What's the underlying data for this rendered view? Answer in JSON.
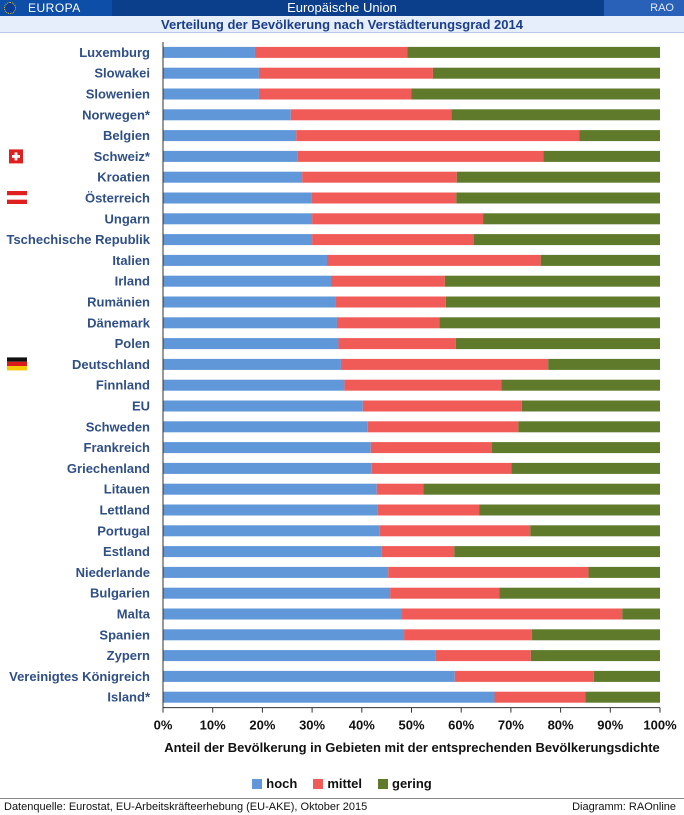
{
  "header": {
    "brand_left": "EUROPA",
    "title": "Europäische Union",
    "brand_right": "RAO",
    "subtitle": "Verteilung der Bevölkerung nach Verstädterungsgrad 2014"
  },
  "footer": {
    "source": "Datenquelle: Eurostat, EU-Arbeitskräfteerhebung (EU-AKE), Oktober 2015",
    "credit": "Diagramm: RAOnline"
  },
  "chart_data": {
    "type": "bar",
    "orientation": "horizontal",
    "stacked": "100%",
    "title": "Verteilung der Bevölkerung nach Verstädterungsgrad 2014",
    "xlabel": "Anteil der Bevölkerung in Gebieten mit der entsprechenden Bevölkerungsdichte",
    "ylabel": "",
    "xlim": [
      0,
      100
    ],
    "x_ticks": [
      "0%",
      "10%",
      "20%",
      "30%",
      "40%",
      "50%",
      "60%",
      "70%",
      "80%",
      "90%",
      "100%"
    ],
    "grid": false,
    "legend_position": "bottom",
    "categories": [
      "Luxemburg",
      "Slowakei",
      "Slowenien",
      "Norwegen*",
      "Belgien",
      "Schweiz*",
      "Kroatien",
      "Österreich",
      "Ungarn",
      "Tschechische Republik",
      "Italien",
      "Irland",
      "Rumänien",
      "Dänemark",
      "Polen",
      "Deutschland",
      "Finnland",
      "EU",
      "Schweden",
      "Frankreich",
      "Griechenland",
      "Litauen",
      "Lettland",
      "Portugal",
      "Estland",
      "Niederlande",
      "Bulgarien",
      "Malta",
      "Spanien",
      "Zypern",
      "Vereinigtes Königreich",
      "Island*"
    ],
    "flags": {
      "Schweiz*": "ch-flag",
      "Österreich": "at-flag",
      "Deutschland": "de-flag"
    },
    "series": [
      {
        "name": "hoch",
        "color": "#5f97d8",
        "values": [
          18.5,
          19.3,
          19.3,
          25.7,
          26.8,
          27.0,
          28.0,
          29.9,
          30.0,
          30.0,
          33.0,
          33.8,
          34.8,
          35.0,
          35.3,
          35.8,
          36.5,
          40.2,
          41.2,
          41.8,
          42.0,
          43.0,
          43.1,
          43.6,
          43.9,
          45.3,
          45.7,
          47.9,
          48.5,
          54.8,
          58.7,
          66.7
        ]
      },
      {
        "name": "mittel",
        "color": "#f05a57",
        "values": [
          30.7,
          35.0,
          30.7,
          32.3,
          57.0,
          49.5,
          31.1,
          29.1,
          34.4,
          32.5,
          43.0,
          22.9,
          22.1,
          20.6,
          23.6,
          41.7,
          31.6,
          32.0,
          30.3,
          24.4,
          28.1,
          9.4,
          20.5,
          30.3,
          14.7,
          40.3,
          22.0,
          44.5,
          25.7,
          19.2,
          28.0,
          18.3
        ]
      },
      {
        "name": "gering",
        "color": "#5f7a2b",
        "values": [
          50.8,
          45.7,
          50.0,
          42.0,
          16.2,
          23.5,
          40.9,
          41.0,
          35.6,
          37.5,
          24.0,
          43.3,
          43.1,
          44.4,
          41.1,
          22.5,
          31.9,
          27.8,
          28.5,
          33.8,
          29.9,
          47.6,
          36.4,
          26.1,
          41.4,
          14.4,
          32.3,
          7.6,
          25.8,
          26.0,
          13.3,
          15.0
        ]
      }
    ]
  }
}
